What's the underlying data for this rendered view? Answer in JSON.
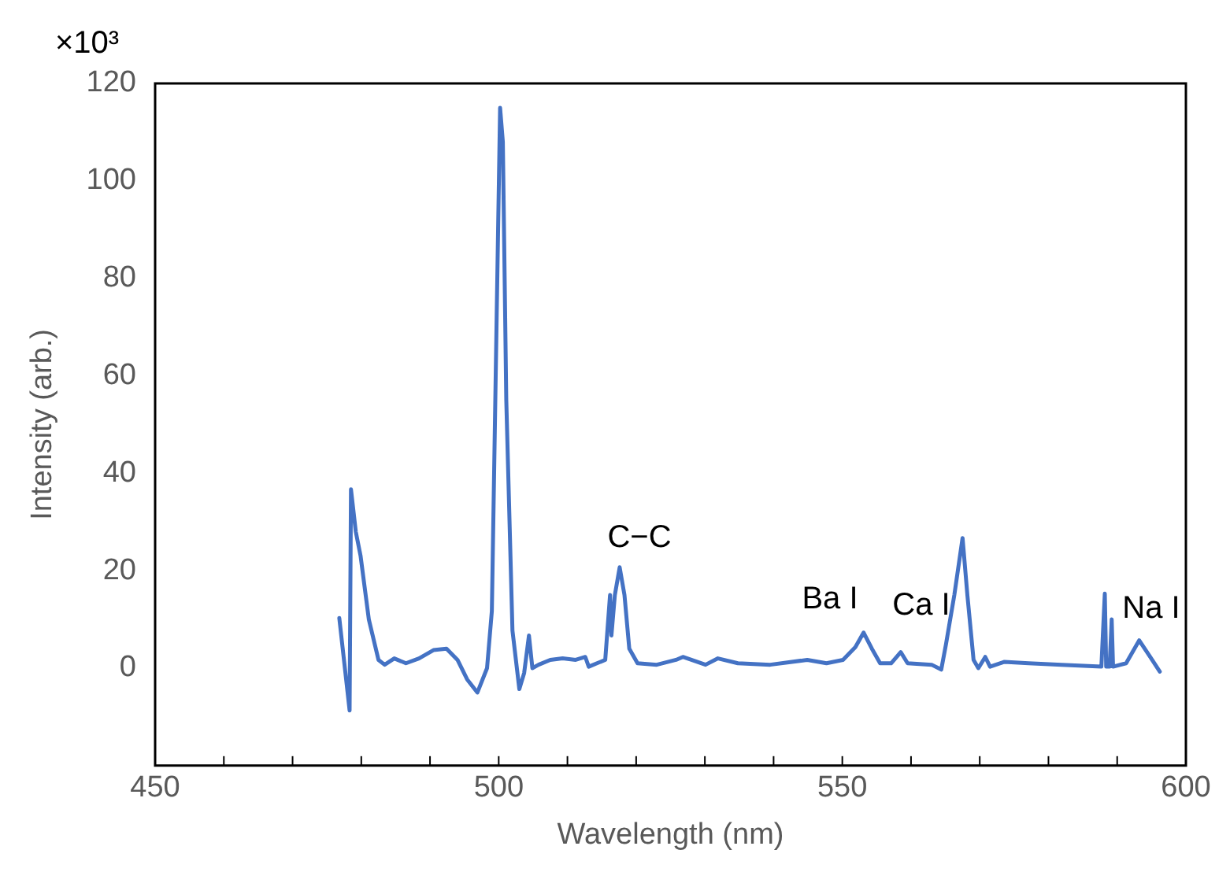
{
  "chart_data": {
    "type": "line",
    "xlabel": "Wavelength (nm)",
    "ylabel": "Intensity (arb.)",
    "x": [
      476.8,
      478.3,
      478.5,
      479.2,
      479.9,
      481.1,
      482.5,
      483.4,
      484.8,
      486.5,
      488.4,
      490.5,
      492.4,
      494,
      495.4,
      496.9,
      498.3,
      499,
      499.7,
      500.2,
      500.6,
      501.1,
      502,
      503,
      503.7,
      504.4,
      504.9,
      505.8,
      507.5,
      509.3,
      511.2,
      512.6,
      513.1,
      514.3,
      515.5,
      516.2,
      516.4,
      516.9,
      517.6,
      518.3,
      519,
      520.2,
      523,
      525.8,
      526.8,
      530.1,
      531.9,
      534.8,
      539.5,
      544.9,
      547.7,
      550.1,
      551.9,
      553.1,
      554.3,
      555.5,
      557.1,
      558.5,
      559.5,
      563,
      564.4,
      565.1,
      566.3,
      567.5,
      568.2,
      569.1,
      569.8,
      570.8,
      571.5,
      573.6,
      577.1,
      581.9,
      587.7,
      588.2,
      588.4,
      588.9,
      589.2,
      589.4,
      591.3,
      593.2,
      594.8,
      596.2
    ],
    "series": [
      {
        "color": "#4472c4",
        "values": [
          10.3,
          -8.7,
          36.7,
          28,
          23,
          10,
          1.7,
          0.7,
          2,
          1,
          2,
          3.7,
          4,
          1.7,
          -2.3,
          -5,
          0,
          11.7,
          72,
          115,
          108,
          55,
          7.7,
          -4.3,
          -1,
          6.7,
          0,
          0.7,
          1.7,
          2,
          1.7,
          2.3,
          0.3,
          1,
          1.7,
          15,
          6.7,
          15,
          20.7,
          15,
          4,
          1,
          0.7,
          1.7,
          2.3,
          0.7,
          2,
          1,
          0.7,
          1.7,
          1,
          1.7,
          4.3,
          7.3,
          4,
          1,
          1,
          3.3,
          1,
          0.7,
          -0.3,
          5,
          15,
          26.7,
          15,
          1.7,
          0,
          2.3,
          0.3,
          1.3,
          1,
          0.7,
          0.3,
          15.3,
          0.3,
          0.3,
          10,
          0.3,
          1,
          5.7,
          2.3,
          -0.7
        ]
      }
    ],
    "xlim": [
      450,
      600
    ],
    "xticks": [
      450,
      {
        "value": 460,
        "label": null
      },
      {
        "value": 470,
        "label": null
      },
      {
        "value": 480,
        "label": null
      },
      {
        "value": 490,
        "label": null
      },
      500,
      {
        "value": 510,
        "label": null
      },
      {
        "value": 520,
        "label": null
      },
      {
        "value": 530,
        "label": null
      },
      {
        "value": 540,
        "label": null
      },
      550,
      {
        "value": 560,
        "label": null
      },
      {
        "value": 570,
        "label": null
      },
      {
        "value": 580,
        "label": null
      },
      {
        "value": 590,
        "label": null
      },
      600
    ],
    "ylim": [
      -20,
      120
    ],
    "yticks": [
      0,
      20,
      40,
      60,
      80,
      100,
      120
    ],
    "grid": false,
    "legend": false,
    "marker": "none",
    "line_style": "solid",
    "annotations": [
      "×10³",
      "C−C",
      "Ba I",
      "Ca I",
      "Na I"
    ]
  }
}
